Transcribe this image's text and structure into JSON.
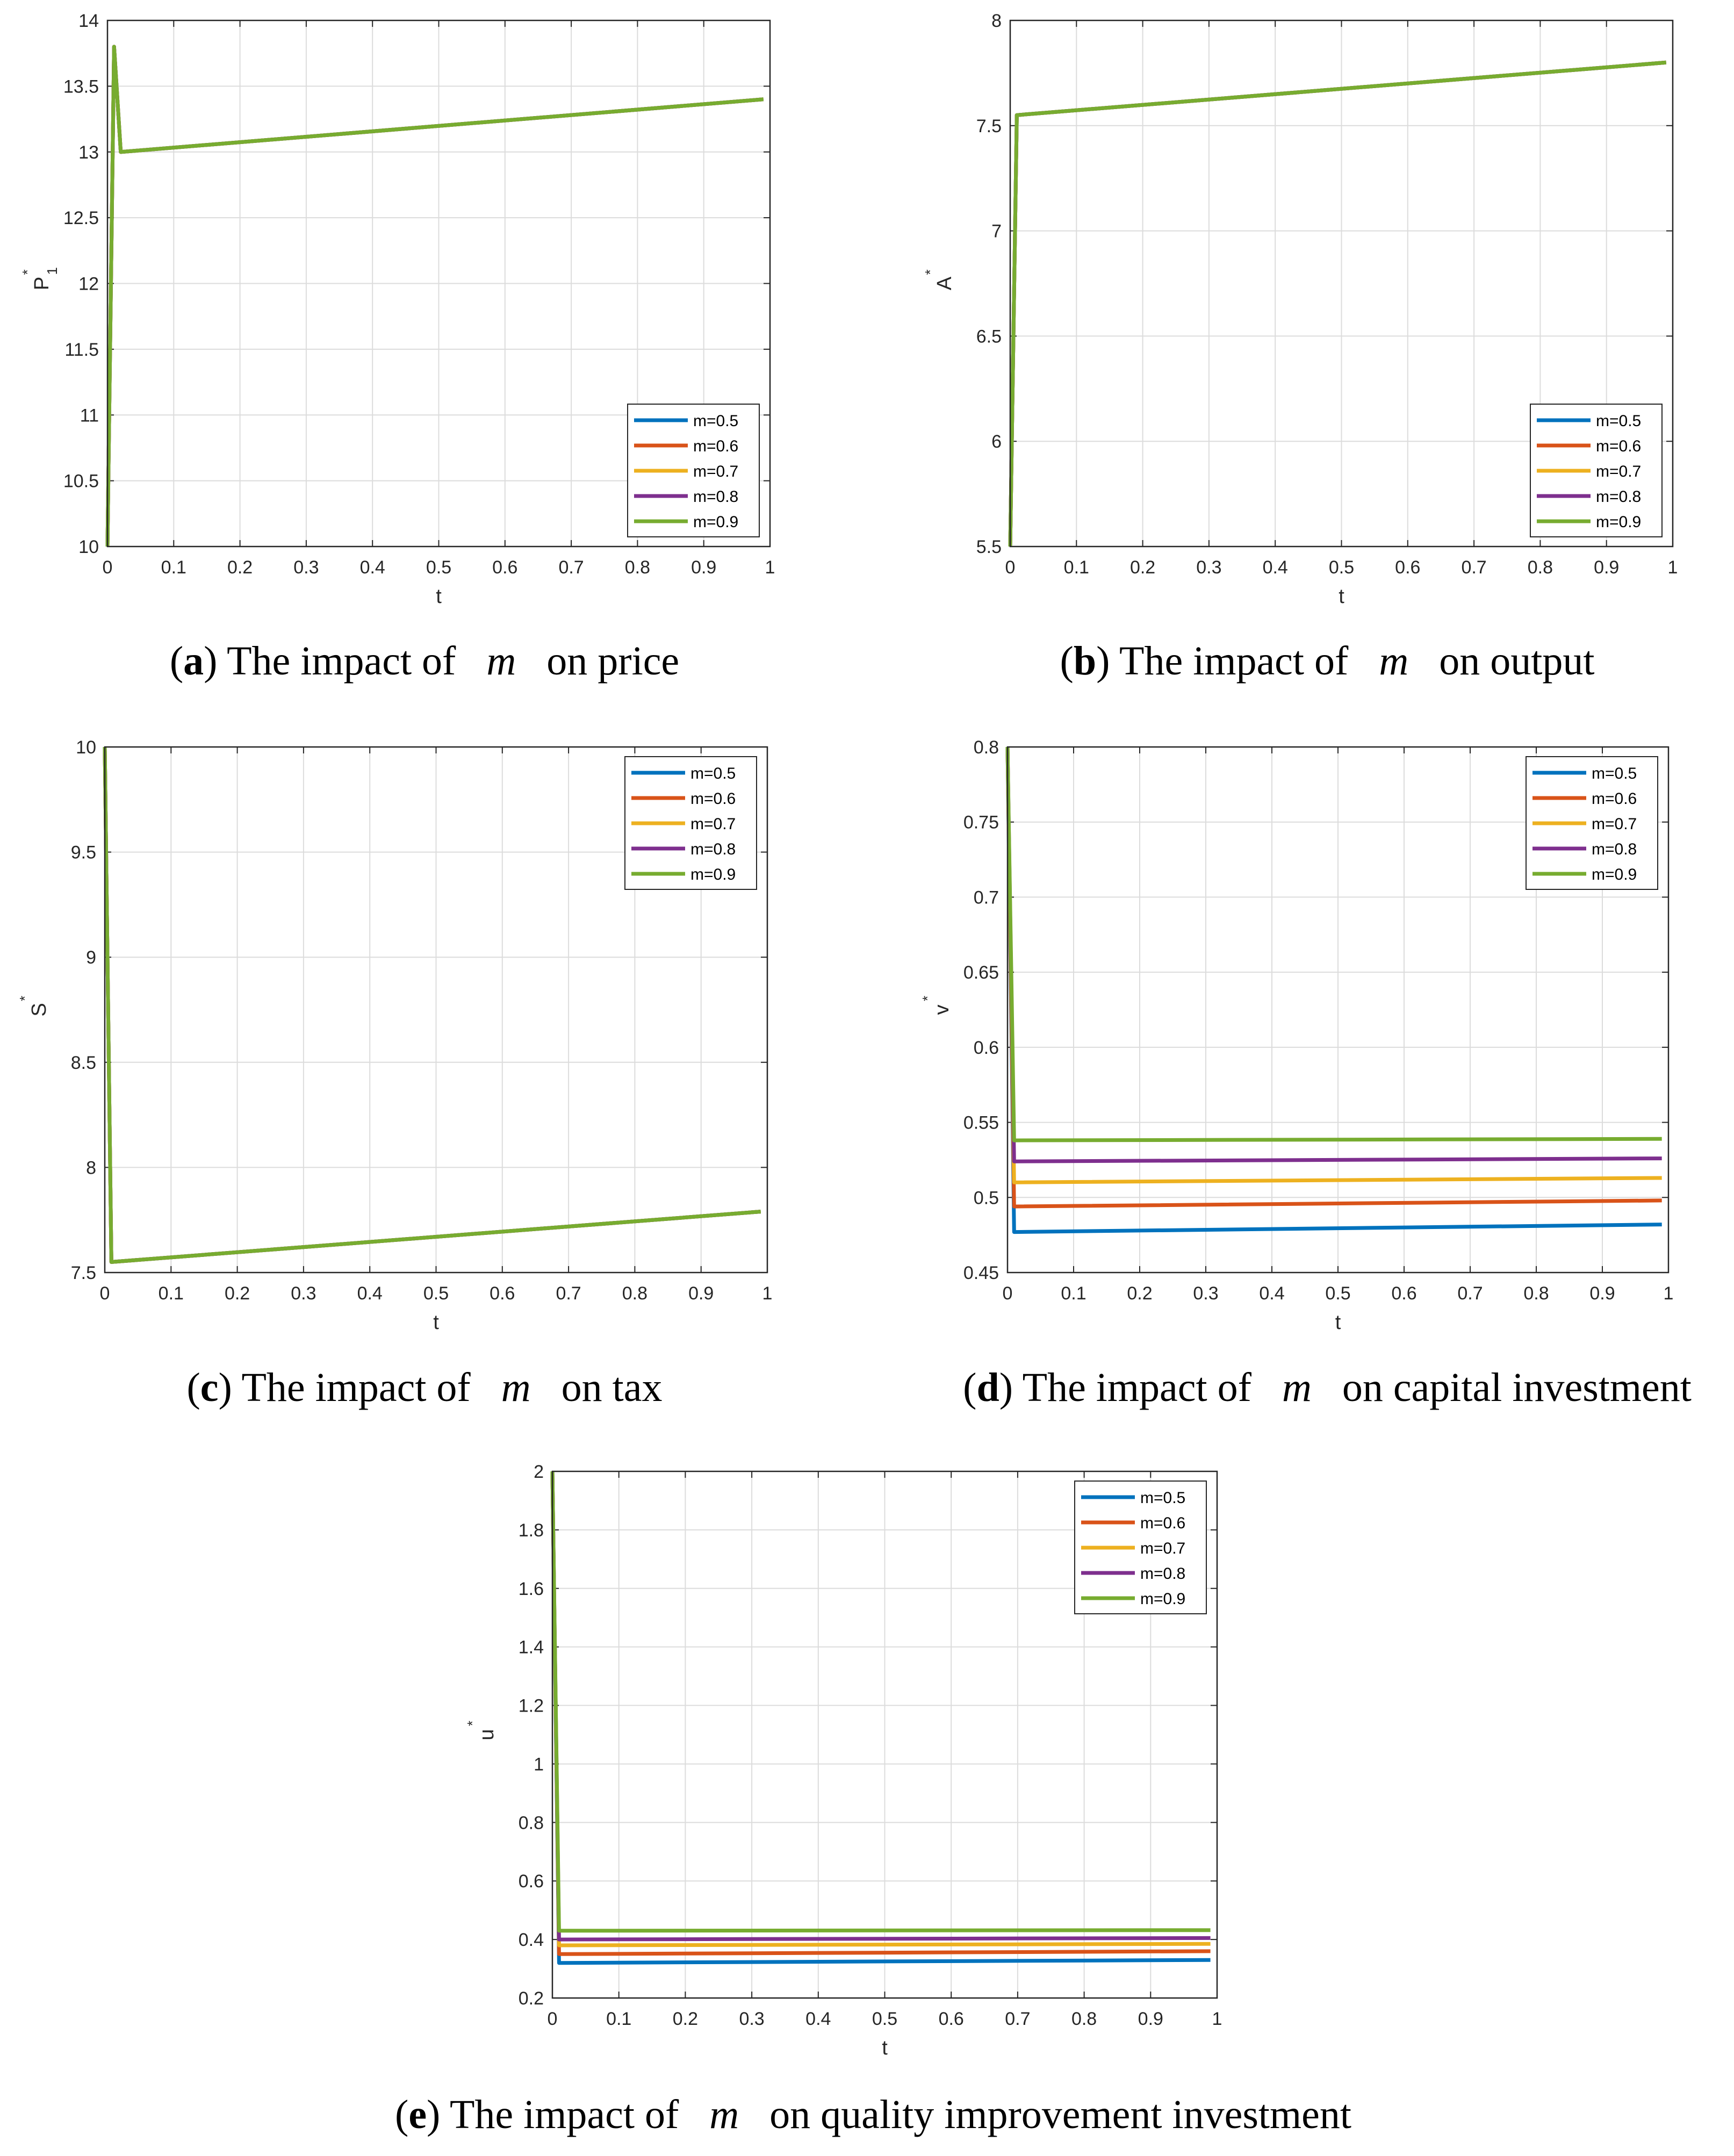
{
  "series_colors": [
    "#0072BD",
    "#D95319",
    "#EDB120",
    "#7E2F8E",
    "#77AC30"
  ],
  "legend_labels": [
    "m=0.5",
    "m=0.6",
    "m=0.7",
    "m=0.8",
    "m=0.9"
  ],
  "caption_parts": {
    "pre": "The impact of",
    "var": "m",
    "post_prefix": "on"
  },
  "chart_data": [
    {
      "id": "a",
      "type": "line",
      "caption_letter": "a",
      "caption_tail": "price",
      "xlabel": "t",
      "ylabel": "P",
      "ylabel_sup": "*",
      "ylabel_sub": "1",
      "xlim": [
        0,
        1
      ],
      "ylim": [
        10,
        14
      ],
      "xticks": [
        "0",
        "0.1",
        "0.2",
        "0.3",
        "0.4",
        "0.5",
        "0.6",
        "0.7",
        "0.8",
        "0.9",
        "1"
      ],
      "yticks": [
        "10",
        "10.5",
        "11",
        "11.5",
        "12",
        "12.5",
        "13",
        "13.5",
        "14"
      ],
      "grid": true,
      "legend_position": "bottom-right",
      "series": [
        {
          "name": "m=0.5",
          "x": [
            0,
            0.01,
            0.02,
            0.99
          ],
          "y": [
            10,
            13.8,
            13.0,
            13.4
          ]
        },
        {
          "name": "m=0.6",
          "x": [
            0,
            0.01,
            0.02,
            0.99
          ],
          "y": [
            10,
            13.8,
            13.0,
            13.4
          ]
        },
        {
          "name": "m=0.7",
          "x": [
            0,
            0.01,
            0.02,
            0.99
          ],
          "y": [
            10,
            13.8,
            13.0,
            13.4
          ]
        },
        {
          "name": "m=0.8",
          "x": [
            0,
            0.01,
            0.02,
            0.99
          ],
          "y": [
            10,
            13.8,
            13.0,
            13.4
          ]
        },
        {
          "name": "m=0.9",
          "x": [
            0,
            0.01,
            0.02,
            0.99
          ],
          "y": [
            10,
            13.8,
            13.0,
            13.4
          ]
        }
      ]
    },
    {
      "id": "b",
      "type": "line",
      "caption_letter": "b",
      "caption_tail": "output",
      "xlabel": "t",
      "ylabel": "A",
      "ylabel_sup": "*",
      "ylabel_sub": "",
      "xlim": [
        0,
        1
      ],
      "ylim": [
        5.5,
        8
      ],
      "xticks": [
        "0",
        "0.1",
        "0.2",
        "0.3",
        "0.4",
        "0.5",
        "0.6",
        "0.7",
        "0.8",
        "0.9",
        "1"
      ],
      "yticks": [
        "5.5",
        "6",
        "6.5",
        "7",
        "7.5",
        "8"
      ],
      "grid": true,
      "legend_position": "bottom-right",
      "series": [
        {
          "name": "m=0.5",
          "x": [
            0,
            0.01,
            0.99
          ],
          "y": [
            5.5,
            7.55,
            7.8
          ]
        },
        {
          "name": "m=0.6",
          "x": [
            0,
            0.01,
            0.99
          ],
          "y": [
            5.5,
            7.55,
            7.8
          ]
        },
        {
          "name": "m=0.7",
          "x": [
            0,
            0.01,
            0.99
          ],
          "y": [
            5.5,
            7.55,
            7.8
          ]
        },
        {
          "name": "m=0.8",
          "x": [
            0,
            0.01,
            0.99
          ],
          "y": [
            5.5,
            7.55,
            7.8
          ]
        },
        {
          "name": "m=0.9",
          "x": [
            0,
            0.01,
            0.99
          ],
          "y": [
            5.5,
            7.55,
            7.8
          ]
        }
      ]
    },
    {
      "id": "c",
      "type": "line",
      "caption_letter": "c",
      "caption_tail": "tax",
      "xlabel": "t",
      "ylabel": "S",
      "ylabel_sup": "*",
      "ylabel_sub": "",
      "xlim": [
        0,
        1
      ],
      "ylim": [
        7.5,
        10
      ],
      "xticks": [
        "0",
        "0.1",
        "0.2",
        "0.3",
        "0.4",
        "0.5",
        "0.6",
        "0.7",
        "0.8",
        "0.9",
        "1"
      ],
      "yticks": [
        "7.5",
        "8",
        "8.5",
        "9",
        "9.5",
        "10"
      ],
      "grid": true,
      "legend_position": "top-right",
      "series": [
        {
          "name": "m=0.5",
          "x": [
            0,
            0.01,
            0.99
          ],
          "y": [
            10,
            7.55,
            7.79
          ]
        },
        {
          "name": "m=0.6",
          "x": [
            0,
            0.01,
            0.99
          ],
          "y": [
            10,
            7.55,
            7.79
          ]
        },
        {
          "name": "m=0.7",
          "x": [
            0,
            0.01,
            0.99
          ],
          "y": [
            10,
            7.55,
            7.79
          ]
        },
        {
          "name": "m=0.8",
          "x": [
            0,
            0.01,
            0.99
          ],
          "y": [
            10,
            7.55,
            7.79
          ]
        },
        {
          "name": "m=0.9",
          "x": [
            0,
            0.01,
            0.99
          ],
          "y": [
            10,
            7.55,
            7.79
          ]
        }
      ]
    },
    {
      "id": "d",
      "type": "line",
      "caption_letter": "d",
      "caption_tail": "capital investment",
      "xlabel": "t",
      "ylabel": "v",
      "ylabel_sup": "*",
      "ylabel_sub": "",
      "xlim": [
        0,
        1
      ],
      "ylim": [
        0.45,
        0.8
      ],
      "xticks": [
        "0",
        "0.1",
        "0.2",
        "0.3",
        "0.4",
        "0.5",
        "0.6",
        "0.7",
        "0.8",
        "0.9",
        "1"
      ],
      "yticks": [
        "0.45",
        "0.5",
        "0.55",
        "0.6",
        "0.65",
        "0.7",
        "0.75",
        "0.8"
      ],
      "grid": true,
      "legend_position": "top-right",
      "series": [
        {
          "name": "m=0.5",
          "x": [
            0,
            0.01,
            0.99
          ],
          "y": [
            0.8,
            0.477,
            0.482
          ]
        },
        {
          "name": "m=0.6",
          "x": [
            0,
            0.01,
            0.99
          ],
          "y": [
            0.8,
            0.494,
            0.498
          ]
        },
        {
          "name": "m=0.7",
          "x": [
            0,
            0.01,
            0.99
          ],
          "y": [
            0.8,
            0.51,
            0.513
          ]
        },
        {
          "name": "m=0.8",
          "x": [
            0,
            0.01,
            0.99
          ],
          "y": [
            0.8,
            0.524,
            0.526
          ]
        },
        {
          "name": "m=0.9",
          "x": [
            0,
            0.01,
            0.99
          ],
          "y": [
            0.8,
            0.538,
            0.539
          ]
        }
      ]
    },
    {
      "id": "e",
      "type": "line",
      "caption_letter": "e",
      "caption_tail": "quality improvement investment",
      "xlabel": "t",
      "ylabel": "u",
      "ylabel_sup": "*",
      "ylabel_sub": "",
      "xlim": [
        0,
        1
      ],
      "ylim": [
        0.2,
        2
      ],
      "xticks": [
        "0",
        "0.1",
        "0.2",
        "0.3",
        "0.4",
        "0.5",
        "0.6",
        "0.7",
        "0.8",
        "0.9",
        "1"
      ],
      "yticks": [
        "0.2",
        "0.4",
        "0.6",
        "0.8",
        "1",
        "1.2",
        "1.4",
        "1.6",
        "1.8",
        "2"
      ],
      "grid": true,
      "legend_position": "top-right",
      "series": [
        {
          "name": "m=0.5",
          "x": [
            0,
            0.01,
            0.99
          ],
          "y": [
            2,
            0.32,
            0.33
          ]
        },
        {
          "name": "m=0.6",
          "x": [
            0,
            0.01,
            0.99
          ],
          "y": [
            2,
            0.35,
            0.36
          ]
        },
        {
          "name": "m=0.7",
          "x": [
            0,
            0.01,
            0.99
          ],
          "y": [
            2,
            0.38,
            0.385
          ]
        },
        {
          "name": "m=0.8",
          "x": [
            0,
            0.01,
            0.99
          ],
          "y": [
            2,
            0.4,
            0.405
          ]
        },
        {
          "name": "m=0.9",
          "x": [
            0,
            0.01,
            0.99
          ],
          "y": [
            2,
            0.43,
            0.432
          ]
        }
      ]
    }
  ]
}
